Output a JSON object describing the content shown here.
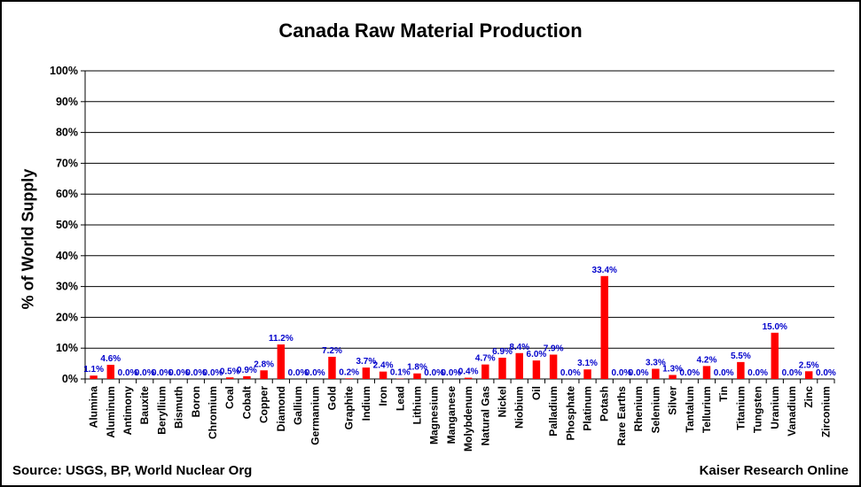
{
  "chart_data": {
    "type": "bar",
    "title": "Canada Raw Material Production",
    "ylabel": "% of World Supply",
    "xlabel": "",
    "ylim": [
      0,
      100
    ],
    "yticks": [
      "0%",
      "10%",
      "20%",
      "30%",
      "40%",
      "50%",
      "60%",
      "70%",
      "80%",
      "90%",
      "100%"
    ],
    "grid": true,
    "legend": "none",
    "categories": [
      "Alumina",
      "Aluminum",
      "Antimony",
      "Bauxite",
      "Beryllium",
      "Bismuth",
      "Boron",
      "Chromium",
      "Coal",
      "Cobalt",
      "Copper",
      "Diamond",
      "Gallium",
      "Germanium",
      "Gold",
      "Graphite",
      "Indium",
      "Iron",
      "Lead",
      "Lithium",
      "Magnesium",
      "Manganese",
      "Molybdenum",
      "Natural Gas",
      "Nickel",
      "Niobium",
      "Oil",
      "Palladium",
      "Phosphate",
      "Platinum",
      "Potash",
      "Rare Earths",
      "Rhenium",
      "Selenium",
      "Silver",
      "Tantalum",
      "Tellurium",
      "Tin",
      "Titanium",
      "Tungsten",
      "Uranium",
      "Vanadium",
      "Zinc",
      "Zirconium"
    ],
    "values": [
      1.1,
      4.6,
      0.0,
      0.0,
      0.0,
      0.0,
      0.0,
      0.0,
      0.5,
      0.9,
      2.8,
      11.2,
      0.0,
      0.0,
      7.2,
      0.2,
      3.7,
      2.4,
      0.1,
      1.8,
      0.0,
      0.0,
      0.4,
      4.7,
      6.9,
      8.4,
      6.0,
      7.9,
      0.0,
      3.1,
      33.4,
      0.0,
      0.0,
      3.3,
      1.3,
      0.0,
      4.2,
      0.0,
      5.5,
      0.0,
      15.0,
      0.0,
      2.5,
      0.0
    ],
    "data_labels": [
      "1.1%",
      "4.6%",
      "0.0%",
      "0.0%",
      "0.0%",
      "0.0%",
      "0.0%",
      "0.0%",
      "0.5%",
      "0.9%",
      "2.8%",
      "11.2%",
      "0.0%",
      "0.0%",
      "7.2%",
      "0.2%",
      "3.7%",
      "2.4%",
      "0.1%",
      "1.8%",
      "0.0%",
      "0.0%",
      "0.4%",
      "4.7%",
      "6.9%",
      "8.4%",
      "6.0%",
      "7.9%",
      "0.0%",
      "3.1%",
      "33.4%",
      "0.0%",
      "0.0%",
      "3.3%",
      "1.3%",
      "0.0%",
      "4.2%",
      "0.0%",
      "5.5%",
      "0.0%",
      "15.0%",
      "0.0%",
      "2.5%",
      "0.0%"
    ],
    "bar_color": "#ff0000",
    "label_color": "#0000cc"
  },
  "footer": {
    "source": "Source: USGS, BP, World Nuclear Org",
    "credit": "Kaiser Research Online"
  }
}
